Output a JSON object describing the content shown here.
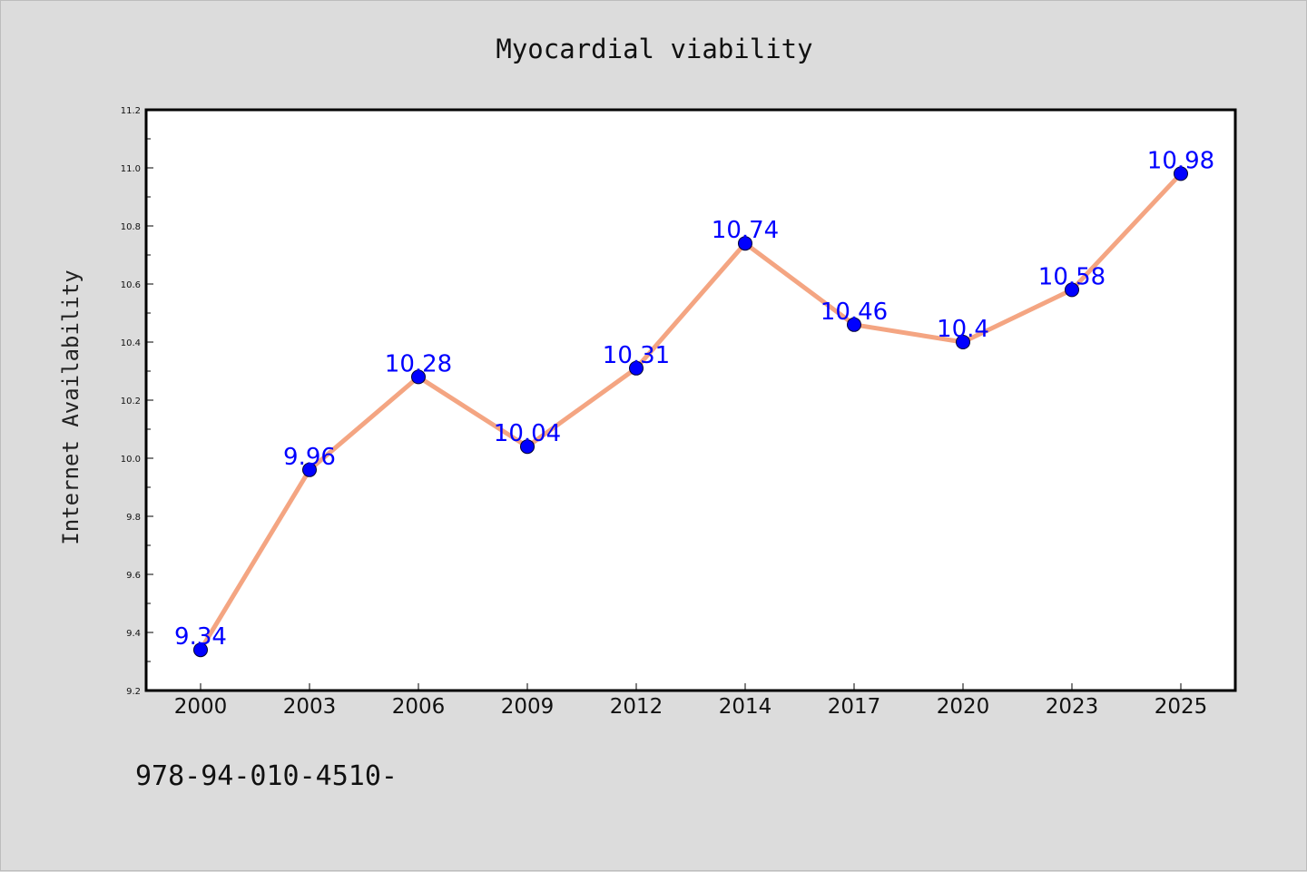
{
  "chart_data": {
    "type": "line",
    "title": "Myocardial viability",
    "xlabel": "",
    "ylabel": "Internet Availability",
    "categories": [
      "2000",
      "2003",
      "2006",
      "2009",
      "2012",
      "2014",
      "2017",
      "2020",
      "2023",
      "2025"
    ],
    "series": [
      {
        "values": [
          9.34,
          9.96,
          10.28,
          10.04,
          10.31,
          10.74,
          10.46,
          10.4,
          10.58,
          10.98
        ],
        "data_labels": [
          "9.34",
          "9.96",
          "10.28",
          "10.04",
          "10.31",
          "10.74",
          "10.46",
          "10.4",
          "10.58",
          "10.98"
        ]
      }
    ],
    "ylim": [
      9.2,
      11.2
    ],
    "yticks": [
      "9.2",
      "9.4",
      "9.6",
      "9.8",
      "10.0",
      "10.2",
      "10.4",
      "10.6",
      "10.8",
      "11.0",
      "11.2"
    ],
    "grid": false,
    "colors": {
      "line": "#f4a582",
      "marker": "#0000ff",
      "label": "#0000ff",
      "background": "#dcdcdc",
      "plot_area": "#ffffff"
    }
  },
  "footer": {
    "text": "978-94-010-4510-"
  }
}
